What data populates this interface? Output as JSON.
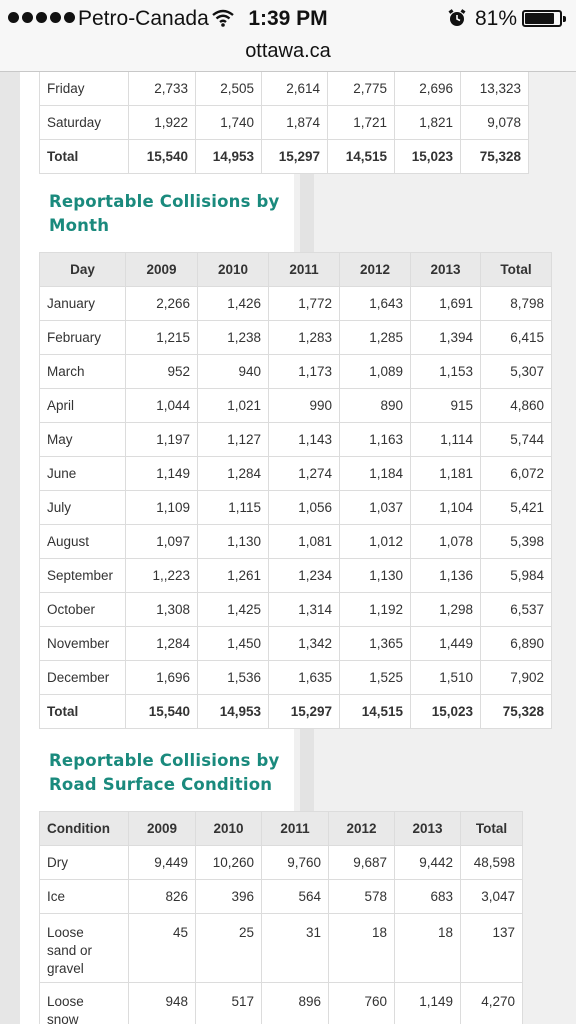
{
  "status_bar": {
    "carrier": "Petro-Canada",
    "time": "1:39 PM",
    "battery": "81%",
    "battery_level": 0.81,
    "signal_icon": "signal-dots-icon",
    "wifi_icon": "wifi-icon",
    "alarm_icon": "alarm-clock-icon"
  },
  "browser": {
    "url": "ottawa.ca"
  },
  "day_table": {
    "rows": [
      {
        "label": "Friday",
        "values": [
          "2,733",
          "2,505",
          "2,614",
          "2,775",
          "2,696",
          "13,323"
        ]
      },
      {
        "label": "Saturday",
        "values": [
          "1,922",
          "1,740",
          "1,874",
          "1,721",
          "1,821",
          "9,078"
        ]
      }
    ],
    "total": {
      "label": "Total",
      "values": [
        "15,540",
        "14,953",
        "15,297",
        "14,515",
        "15,023",
        "75,328"
      ]
    }
  },
  "month_section": {
    "title_line1": "Reportable Collisions by",
    "title_line2": "Month",
    "headers": [
      "Day",
      "2009",
      "2010",
      "2011",
      "2012",
      "2013",
      "Total"
    ],
    "rows": [
      {
        "label": "January",
        "values": [
          "2,266",
          "1,426",
          "1,772",
          "1,643",
          "1,691",
          "8,798"
        ]
      },
      {
        "label": "February",
        "values": [
          "1,215",
          "1,238",
          "1,283",
          "1,285",
          "1,394",
          "6,415"
        ]
      },
      {
        "label": "March",
        "values": [
          "952",
          "940",
          "1,173",
          "1,089",
          "1,153",
          "5,307"
        ]
      },
      {
        "label": "April",
        "values": [
          "1,044",
          "1,021",
          "990",
          "890",
          "915",
          "4,860"
        ]
      },
      {
        "label": "May",
        "values": [
          "1,197",
          "1,127",
          "1,143",
          "1,163",
          "1,114",
          "5,744"
        ]
      },
      {
        "label": "June",
        "values": [
          "1,149",
          "1,284",
          "1,274",
          "1,184",
          "1,181",
          "6,072"
        ]
      },
      {
        "label": "July",
        "values": [
          "1,109",
          "1,115",
          "1,056",
          "1,037",
          "1,104",
          "5,421"
        ]
      },
      {
        "label": "August",
        "values": [
          "1,097",
          "1,130",
          "1,081",
          "1,012",
          "1,078",
          "5,398"
        ]
      },
      {
        "label": "September",
        "values": [
          "1,,223",
          "1,261",
          "1,234",
          "1,130",
          "1,136",
          "5,984"
        ]
      },
      {
        "label": "October",
        "values": [
          "1,308",
          "1,425",
          "1,314",
          "1,192",
          "1,298",
          "6,537"
        ]
      },
      {
        "label": "November",
        "values": [
          "1,284",
          "1,450",
          "1,342",
          "1,365",
          "1,449",
          "6,890"
        ]
      },
      {
        "label": "December",
        "values": [
          "1,696",
          "1,536",
          "1,635",
          "1,525",
          "1,510",
          "7,902"
        ]
      }
    ],
    "total": {
      "label": "Total",
      "values": [
        "15,540",
        "14,953",
        "15,297",
        "14,515",
        "15,023",
        "75,328"
      ]
    }
  },
  "surface_section": {
    "title_line1": "Reportable Collisions by",
    "title_line2": "Road Surface Condition",
    "headers": [
      "Condition",
      "2009",
      "2010",
      "2011",
      "2012",
      "2013",
      "Total"
    ],
    "rows": [
      {
        "label_lines": [
          "Dry"
        ],
        "values": [
          "9,449",
          "10,260",
          "9,760",
          "9,687",
          "9,442",
          "48,598"
        ]
      },
      {
        "label_lines": [
          "Ice"
        ],
        "values": [
          "826",
          "396",
          "564",
          "578",
          "683",
          "3,047"
        ]
      },
      {
        "label_lines": [
          "Loose",
          "sand or",
          "gravel"
        ],
        "values": [
          "45",
          "25",
          "31",
          "18",
          "18",
          "137"
        ]
      },
      {
        "label_lines": [
          "Loose",
          "snow"
        ],
        "values": [
          "948",
          "517",
          "896",
          "760",
          "1,149",
          "4,270"
        ]
      }
    ]
  }
}
